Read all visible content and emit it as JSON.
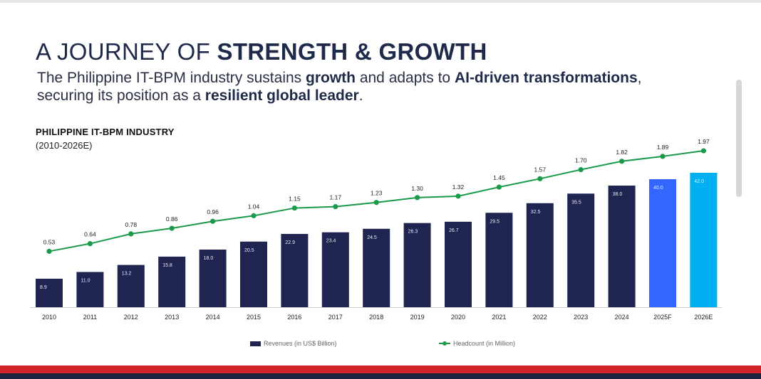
{
  "header": {
    "title_plain": "A JOURNEY OF ",
    "title_bold": "STRENGTH & GROWTH",
    "sub_1": "The Philippine IT-BPM industry sustains ",
    "sub_2": "growth",
    "sub_3": " and adapts to ",
    "sub_4": "AI-driven transformations",
    "sub_5": ",",
    "sub_6": "securing its position as a ",
    "sub_7": "resilient global leader",
    "sub_8": "."
  },
  "chart_data": {
    "type": "bar",
    "title": "PHILIPPINE IT-BPM INDUSTRY",
    "subtitle": "(2010-2026E)",
    "categories": [
      "2010",
      "2011",
      "2012",
      "2013",
      "2014",
      "2015",
      "2016",
      "2017",
      "2018",
      "2019",
      "2020",
      "2021",
      "2022",
      "2023",
      "2024",
      "2025F",
      "2026E"
    ],
    "series": [
      {
        "name": "Revenues (in US$ Billion)",
        "type": "bar",
        "values": [
          8.9,
          11.0,
          13.2,
          15.8,
          18.0,
          20.5,
          22.9,
          23.4,
          24.5,
          26.3,
          26.7,
          29.5,
          32.5,
          35.5,
          38.0,
          40.0,
          42.0
        ],
        "labels": [
          "8.9",
          "11.0",
          "13.2",
          "15.8",
          "18.0",
          "20.5",
          "22.9",
          "23.4",
          "24.5",
          "26.3",
          "26.7",
          "29.5",
          "32.5",
          "35.5",
          "38.0",
          "40.0",
          "42.0"
        ]
      },
      {
        "name": "Headcount (in Million)",
        "type": "line",
        "values": [
          0.53,
          0.64,
          0.78,
          0.86,
          0.96,
          1.04,
          1.15,
          1.17,
          1.23,
          1.3,
          1.32,
          1.45,
          1.57,
          1.7,
          1.82,
          1.89,
          1.97
        ],
        "labels": [
          "0.53",
          "0.64",
          "0.78",
          "0.86",
          "0.96",
          "1.04",
          "1.15",
          "1.17",
          "1.23",
          "1.30",
          "1.32",
          "1.45",
          "1.57",
          "1.70",
          "1.82",
          "1.89",
          "1.97"
        ]
      }
    ],
    "colors": {
      "bar": "#1f2550",
      "bar_2025F": "#3366ff",
      "bar_2026E": "#00b0f0",
      "line": "#1a9a4a"
    },
    "legend_position": "bottom",
    "grid": false
  }
}
